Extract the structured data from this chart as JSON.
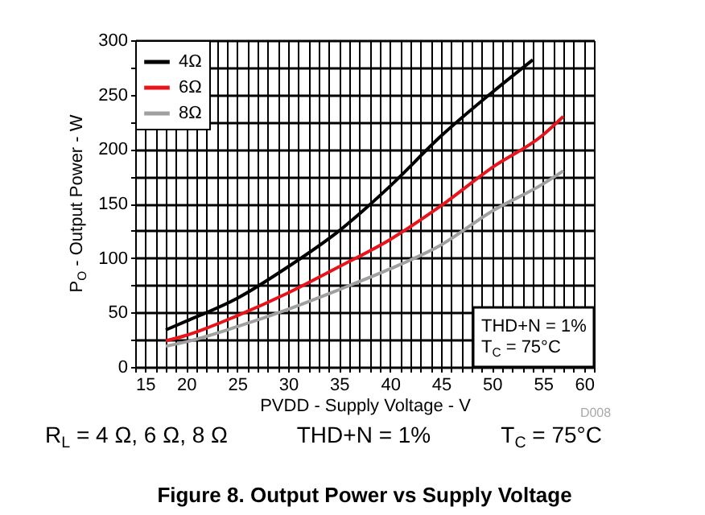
{
  "chart_data": {
    "type": "line",
    "title": "Figure 8. Output Power vs Supply Voltage",
    "xlabel": "PVDD - Supply Voltage - V",
    "ylabel": "P$_{O}$ - Output Power - W",
    "series": [
      {
        "name": "4Ω",
        "color": "#000000",
        "x": [
          18,
          20,
          25,
          30,
          35,
          40,
          45,
          50,
          54
        ],
        "values": [
          34,
          42,
          63,
          92,
          125,
          166,
          212,
          252,
          282
        ]
      },
      {
        "name": "6Ω",
        "color": "#e8141c",
        "x": [
          18,
          20,
          25,
          30,
          35,
          40,
          45,
          50,
          55,
          57
        ],
        "values": [
          24,
          29,
          47,
          68,
          92,
          117,
          148,
          183,
          213,
          230
        ]
      },
      {
        "name": "8Ω",
        "color": "#a0a0a0",
        "x": [
          18,
          20,
          25,
          30,
          35,
          40,
          45,
          50,
          55,
          57
        ],
        "values": [
          19,
          23,
          37,
          53,
          71,
          90,
          112,
          143,
          168,
          180
        ]
      }
    ],
    "xlim": [
      15,
      60
    ],
    "ylim": [
      0,
      300
    ],
    "xticks": [
      15,
      {
        "value": 16,
        "label": null
      },
      {
        "value": 17,
        "label": null
      },
      {
        "value": 18,
        "label": null
      },
      {
        "value": 19,
        "label": null
      },
      20,
      {
        "value": 21,
        "label": null
      },
      {
        "value": 22,
        "label": null
      },
      {
        "value": 23,
        "label": null
      },
      {
        "value": 24,
        "label": null
      },
      25,
      {
        "value": 26,
        "label": null
      },
      {
        "value": 27,
        "label": null
      },
      {
        "value": 28,
        "label": null
      },
      {
        "value": 29,
        "label": null
      },
      30,
      {
        "value": 31,
        "label": null
      },
      {
        "value": 32,
        "label": null
      },
      {
        "value": 33,
        "label": null
      },
      {
        "value": 34,
        "label": null
      },
      35,
      {
        "value": 36,
        "label": null
      },
      {
        "value": 37,
        "label": null
      },
      {
        "value": 38,
        "label": null
      },
      {
        "value": 39,
        "label": null
      },
      40,
      {
        "value": 41,
        "label": null
      },
      {
        "value": 42,
        "label": null
      },
      {
        "value": 43,
        "label": null
      },
      {
        "value": 44,
        "label": null
      },
      45,
      {
        "value": 46,
        "label": null
      },
      {
        "value": 47,
        "label": null
      },
      {
        "value": 48,
        "label": null
      },
      {
        "value": 49,
        "label": null
      },
      50,
      {
        "value": 51,
        "label": null
      },
      {
        "value": 52,
        "label": null
      },
      {
        "value": 53,
        "label": null
      },
      {
        "value": 54,
        "label": null
      },
      55,
      {
        "value": 56,
        "label": null
      },
      {
        "value": 57,
        "label": null
      },
      {
        "value": 58,
        "label": null
      },
      {
        "value": 59,
        "label": null
      },
      60
    ],
    "yticks": [
      0,
      {
        "value": 25,
        "label": null
      },
      50,
      {
        "value": 75,
        "label": null
      },
      100,
      {
        "value": 125,
        "label": null
      },
      150,
      {
        "value": 175,
        "label": null
      },
      200,
      {
        "value": 225,
        "label": null
      },
      250,
      {
        "value": 275,
        "label": null
      },
      300
    ],
    "grid": true,
    "legend": "top left",
    "marker": "none",
    "line_style": "solid",
    "annotations": [
      "THD+N = 1%",
      "T$_{C}$ = 75°C",
      "R$_{L}$ = 4 Ω, 6 Ω, 8 Ω",
      "THD+N = 1%",
      "T$_{C}$ = 75°C",
      "D008"
    ]
  }
}
